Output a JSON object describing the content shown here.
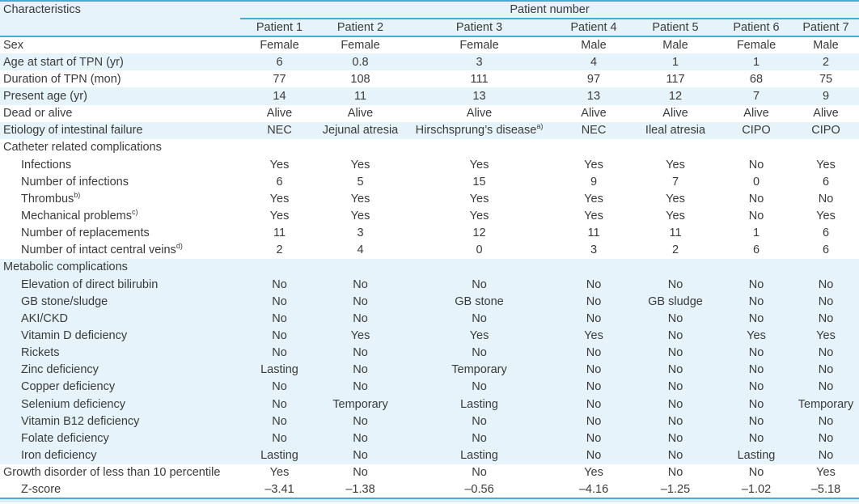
{
  "colors": {
    "accent_line": "#3fafd8",
    "row_shade": "#e7f3fb",
    "text": "#3a3a3a",
    "bottom_strip": "#d9edf8"
  },
  "table": {
    "corner_header": "Characteristics",
    "span_header": "Patient number",
    "columns": [
      "Patient 1",
      "Patient 2",
      "Patient 3",
      "Patient 4",
      "Patient 5",
      "Patient 6",
      "Patient 7"
    ],
    "rows": [
      {
        "label": "Sex",
        "indent": 0,
        "shade": "white",
        "values": [
          "Female",
          "Female",
          "Female",
          "Male",
          "Male",
          "Female",
          "Male"
        ]
      },
      {
        "label": "Age at start of TPN (yr)",
        "indent": 0,
        "shade": "blue",
        "values": [
          "6",
          "0.8",
          "3",
          "4",
          "1",
          "1",
          "2"
        ]
      },
      {
        "label": "Duration of TPN (mon)",
        "indent": 0,
        "shade": "white",
        "values": [
          "77",
          "108",
          "111",
          "97",
          "117",
          "68",
          "75"
        ]
      },
      {
        "label": "Present age (yr)",
        "indent": 0,
        "shade": "blue",
        "values": [
          "14",
          "11",
          "13",
          "13",
          "12",
          "7",
          "9"
        ]
      },
      {
        "label": "Dead or alive",
        "indent": 0,
        "shade": "white",
        "values": [
          "Alive",
          "Alive",
          "Alive",
          "Alive",
          "Alive",
          "Alive",
          "Alive"
        ]
      },
      {
        "label": "Etiology of intestinal failure",
        "indent": 0,
        "shade": "blue",
        "values": [
          "NEC",
          "Jejunal atresia",
          "Hirschsprung’s disease^a)",
          "NEC",
          "Ileal atresia",
          "CIPO",
          "CIPO"
        ]
      },
      {
        "label": "Catheter related complications",
        "indent": 0,
        "shade": "white",
        "values": [
          "",
          "",
          "",
          "",
          "",
          "",
          ""
        ]
      },
      {
        "label": "Infections",
        "indent": 1,
        "shade": "white",
        "values": [
          "Yes",
          "Yes",
          "Yes",
          "Yes",
          "Yes",
          "No",
          "Yes"
        ]
      },
      {
        "label": "Number of infections",
        "indent": 1,
        "shade": "white",
        "values": [
          "6",
          "5",
          "15",
          "9",
          "7",
          "0",
          "6"
        ]
      },
      {
        "label": "Thrombus^b)",
        "indent": 1,
        "shade": "white",
        "values": [
          "Yes",
          "Yes",
          "Yes",
          "Yes",
          "Yes",
          "No",
          "No"
        ]
      },
      {
        "label": "Mechanical problems^c)",
        "indent": 1,
        "shade": "white",
        "values": [
          "Yes",
          "Yes",
          "Yes",
          "Yes",
          "Yes",
          "No",
          "Yes"
        ]
      },
      {
        "label": "Number of replacements",
        "indent": 1,
        "shade": "white",
        "values": [
          "11",
          "3",
          "12",
          "11",
          "11",
          "1",
          "6"
        ]
      },
      {
        "label": "Number of intact central veins^d)",
        "indent": 1,
        "shade": "white",
        "values": [
          "2",
          "4",
          "0",
          "3",
          "2",
          "6",
          "6"
        ]
      },
      {
        "label": "Metabolic complications",
        "indent": 0,
        "shade": "blue",
        "values": [
          "",
          "",
          "",
          "",
          "",
          "",
          ""
        ]
      },
      {
        "label": "Elevation of direct bilirubin",
        "indent": 1,
        "shade": "blue",
        "values": [
          "No",
          "No",
          "No",
          "No",
          "No",
          "No",
          "No"
        ]
      },
      {
        "label": "GB stone/sludge",
        "indent": 1,
        "shade": "blue",
        "values": [
          "No",
          "No",
          "GB stone",
          "No",
          "GB sludge",
          "No",
          "No"
        ]
      },
      {
        "label": "AKI/CKD",
        "indent": 1,
        "shade": "blue",
        "values": [
          "No",
          "No",
          "No",
          "No",
          "No",
          "No",
          "No"
        ]
      },
      {
        "label": "Vitamin D deficiency",
        "indent": 1,
        "shade": "blue",
        "values": [
          "No",
          "Yes",
          "Yes",
          "Yes",
          "No",
          "Yes",
          "Yes"
        ]
      },
      {
        "label": "Rickets",
        "indent": 1,
        "shade": "blue",
        "values": [
          "No",
          "No",
          "No",
          "No",
          "No",
          "No",
          "No"
        ]
      },
      {
        "label": "Zinc deficiency",
        "indent": 1,
        "shade": "blue",
        "values": [
          "Lasting",
          "No",
          "Temporary",
          "No",
          "No",
          "No",
          "No"
        ]
      },
      {
        "label": "Copper deficiency",
        "indent": 1,
        "shade": "blue",
        "values": [
          "No",
          "No",
          "No",
          "No",
          "No",
          "No",
          "No"
        ]
      },
      {
        "label": "Selenium deficiency",
        "indent": 1,
        "shade": "blue",
        "values": [
          "No",
          "Temporary",
          "Lasting",
          "No",
          "No",
          "No",
          "Temporary"
        ]
      },
      {
        "label": "Vitamin B12 deficiency",
        "indent": 1,
        "shade": "blue",
        "values": [
          "No",
          "No",
          "No",
          "No",
          "No",
          "No",
          "No"
        ]
      },
      {
        "label": "Folate deficiency",
        "indent": 1,
        "shade": "blue",
        "values": [
          "No",
          "No",
          "No",
          "No",
          "No",
          "No",
          "No"
        ]
      },
      {
        "label": "Iron deficiency",
        "indent": 1,
        "shade": "blue",
        "values": [
          "Lasting",
          "No",
          "Lasting",
          "No",
          "No",
          "Lasting",
          "No"
        ]
      },
      {
        "label": "Growth disorder of less than 10 percentile",
        "indent": 0,
        "shade": "white",
        "values": [
          "Yes",
          "No",
          "No",
          "Yes",
          "No",
          "No",
          "Yes"
        ]
      },
      {
        "label": "Z-score",
        "indent": 1,
        "shade": "white",
        "values": [
          "–3.41",
          "–1.38",
          "–0.56",
          "–4.16",
          "–1.25",
          "–1.02",
          "–5.18"
        ]
      }
    ]
  }
}
